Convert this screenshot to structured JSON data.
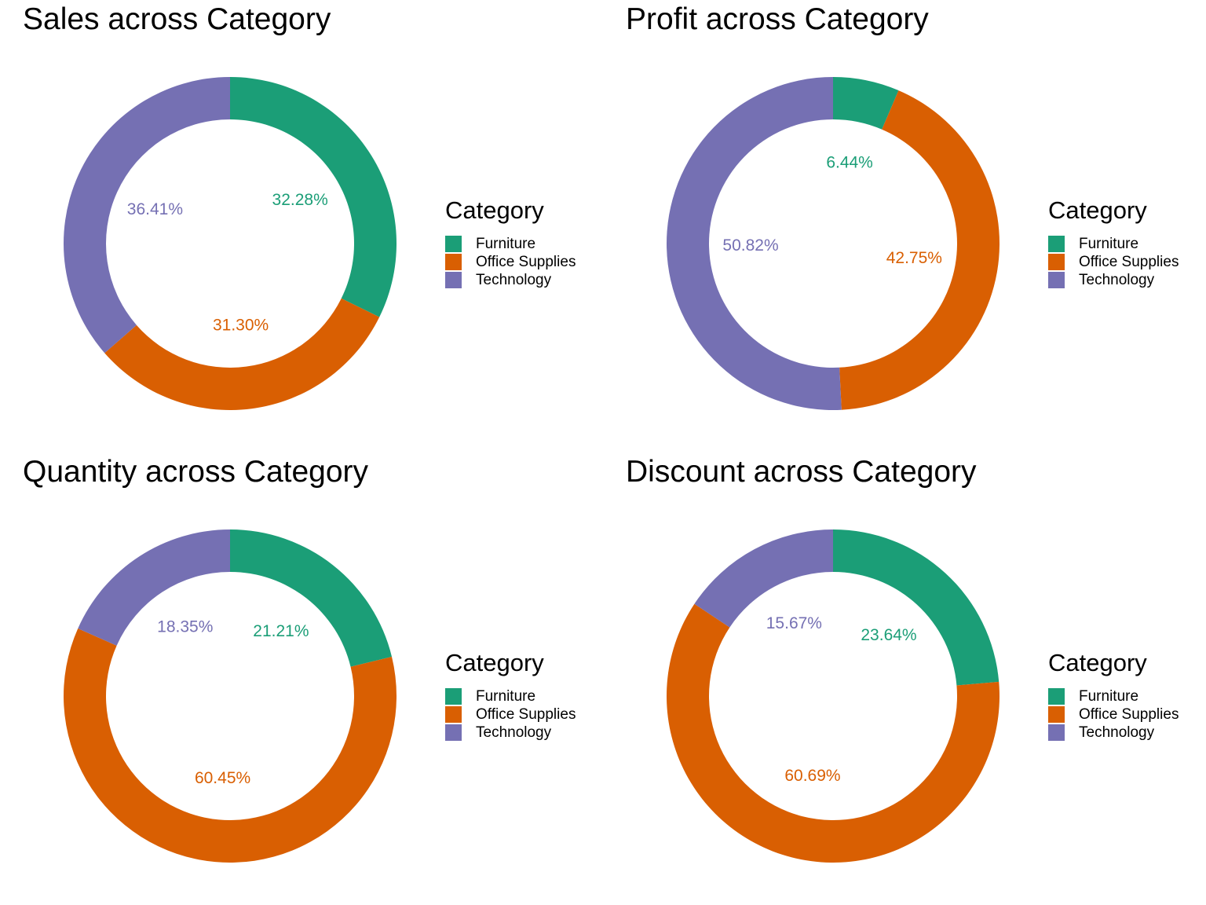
{
  "legend_title": "Category",
  "colors": {
    "Furniture": "#1B9E77",
    "Office Supplies": "#D95F02",
    "Technology": "#7570B3"
  },
  "chart_data": [
    {
      "type": "pie",
      "style": "donut",
      "title": "Sales across Category",
      "categories": [
        "Furniture",
        "Office Supplies",
        "Technology"
      ],
      "values": [
        32.28,
        31.3,
        36.41
      ],
      "labels": [
        "32.28%",
        "31.30%",
        "36.41%"
      ],
      "legend": "right"
    },
    {
      "type": "pie",
      "style": "donut",
      "title": "Profit across Category",
      "categories": [
        "Furniture",
        "Office Supplies",
        "Technology"
      ],
      "values": [
        6.44,
        42.75,
        50.82
      ],
      "labels": [
        "6.44%",
        "42.75%",
        "50.82%"
      ],
      "legend": "right"
    },
    {
      "type": "pie",
      "style": "donut",
      "title": "Quantity across Category",
      "categories": [
        "Furniture",
        "Office Supplies",
        "Technology"
      ],
      "values": [
        21.21,
        60.45,
        18.35
      ],
      "labels": [
        "21.21%",
        "60.45%",
        "18.35%"
      ],
      "legend": "right"
    },
    {
      "type": "pie",
      "style": "donut",
      "title": "Discount across Category",
      "categories": [
        "Furniture",
        "Office Supplies",
        "Technology"
      ],
      "values": [
        23.64,
        60.69,
        15.67
      ],
      "labels": [
        "23.64%",
        "60.69%",
        "15.67%"
      ],
      "legend": "right"
    }
  ]
}
